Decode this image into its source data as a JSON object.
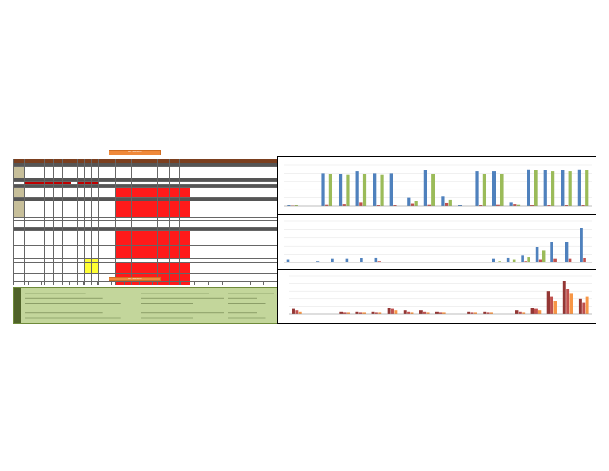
{
  "sheet": {
    "banner_top": "NSL - Tasks/Issues",
    "banner_mid": "NSL - Tasks/Issues",
    "notes_side": "NOTES",
    "notes_headers": [
      "Notes",
      "Planned/Actual Status",
      "Legend"
    ]
  },
  "colors": {
    "header": "#7b3f1f",
    "red": "#ff1a1a",
    "yellow": "#ffff33",
    "notes_bg": "#c3d69b",
    "banner": "#f0893a",
    "series_blue": "#4f81bd",
    "series_red": "#c0504d",
    "series_green": "#9bbb59",
    "series_maroon": "#943634",
    "series_orange": "#f79646"
  },
  "chart_data": [
    {
      "type": "bar",
      "series": [
        {
          "values": [
            2,
            0,
            72,
            70,
            76,
            72,
            72,
            18,
            78,
            22,
            2,
            76,
            76,
            8,
            80,
            78,
            78,
            80
          ]
        },
        {
          "values": [
            1,
            0,
            4,
            5,
            8,
            3,
            2,
            6,
            4,
            7,
            0,
            3,
            4,
            5,
            2,
            3,
            2,
            3
          ]
        },
        {
          "values": [
            3,
            0,
            70,
            68,
            70,
            68,
            0,
            12,
            70,
            14,
            0,
            70,
            70,
            4,
            78,
            76,
            76,
            78
          ]
        }
      ],
      "ylim": [
        0,
        90
      ]
    },
    {
      "type": "bar",
      "series": [
        {
          "values": [
            4,
            1,
            2,
            5,
            5,
            6,
            7,
            1,
            0,
            0,
            0,
            0,
            0,
            1,
            5,
            7,
            10,
            22,
            30,
            30,
            50
          ]
        },
        {
          "values": [
            1,
            0,
            1,
            1,
            1,
            1,
            2,
            0,
            0,
            0,
            0,
            0,
            0,
            0,
            1,
            1,
            2,
            4,
            5,
            5,
            6
          ]
        },
        {
          "values": [
            0,
            0,
            0,
            0,
            0,
            0,
            0,
            0,
            0,
            0,
            0,
            0,
            0,
            0,
            2,
            4,
            8,
            18,
            0,
            0,
            0
          ]
        }
      ],
      "ylim": [
        0,
        60
      ]
    },
    {
      "type": "bar",
      "series": [
        {
          "values": [
            4,
            0,
            0,
            2,
            2,
            2,
            5,
            3,
            3,
            2,
            0,
            2,
            2,
            0,
            3,
            5,
            18,
            26,
            12
          ]
        },
        {
          "values": [
            3,
            0,
            0,
            1,
            1,
            1,
            4,
            2,
            2,
            1,
            0,
            1,
            1,
            0,
            2,
            4,
            14,
            20,
            9
          ]
        },
        {
          "values": [
            2,
            0,
            0,
            1,
            1,
            1,
            3,
            1,
            1,
            1,
            0,
            1,
            1,
            0,
            1,
            3,
            10,
            16,
            14
          ]
        }
      ],
      "ylim": [
        0,
        30
      ]
    }
  ]
}
